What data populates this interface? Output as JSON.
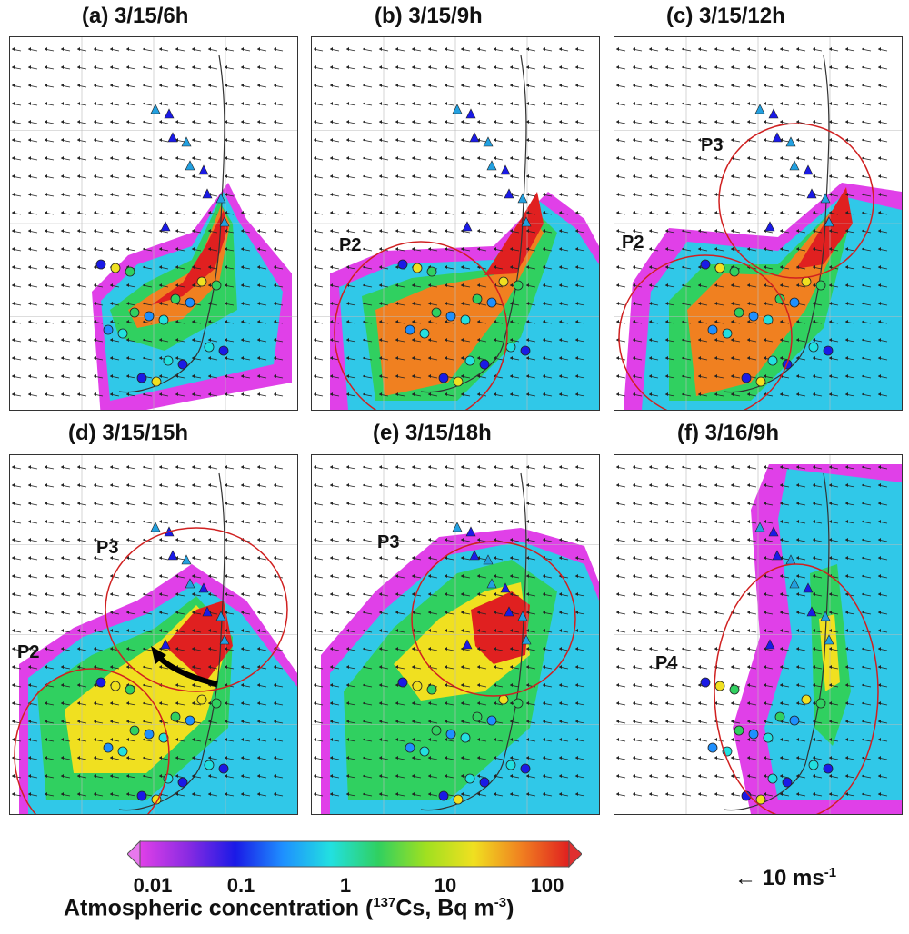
{
  "panels": [
    {
      "id": "a",
      "title": "(a) 3/15/6h",
      "regions": []
    },
    {
      "id": "b",
      "title": "(b) 3/15/9h",
      "regions": [
        "P2"
      ]
    },
    {
      "id": "c",
      "title": "(c) 3/15/12h",
      "regions": [
        "P3",
        "P2"
      ]
    },
    {
      "id": "d",
      "title": "(d) 3/15/15h",
      "regions": [
        "P3",
        "P2"
      ]
    },
    {
      "id": "e",
      "title": "(e) 3/15/18h",
      "regions": [
        "P3"
      ]
    },
    {
      "id": "f",
      "title": "(f) 3/16/9h",
      "regions": [
        "P4"
      ]
    }
  ],
  "colorbar": {
    "ticks": [
      "0.01",
      "0.1",
      "1",
      "10",
      "100"
    ],
    "colors": [
      "#e040e8",
      "#8a2be2",
      "#1a1ae6",
      "#1e90ff",
      "#22e0e0",
      "#30d060",
      "#a0e020",
      "#f0e020",
      "#f08020",
      "#e02020"
    ]
  },
  "axis_label": {
    "prefix": "Atmospheric concentration (",
    "isotope_mass": "137",
    "isotope": "Cs, Bq m",
    "unit_exp": "-3",
    "suffix": ")"
  },
  "wind_scale": {
    "arrow": "←",
    "value": "10 ms",
    "exp": "-1"
  }
}
